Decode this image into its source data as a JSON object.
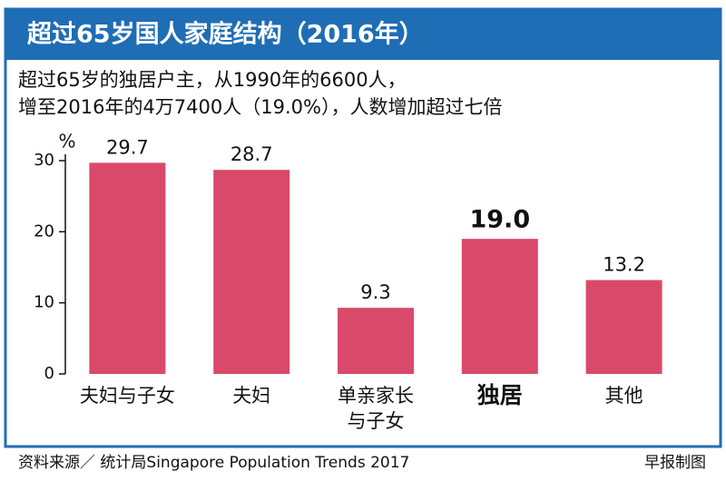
{
  "chart_data": {
    "type": "bar",
    "title": "超过65岁国人家庭结构（2016年）",
    "subtitle": [
      "超过65岁的独居户主，从1990年的6600人，",
      "增至2016年的4万7400人（19.0%），人数增加超过七倍"
    ],
    "y_label": "%",
    "categories": [
      "夫妇与子女",
      "夫妇",
      "单亲家长\n与子女",
      "独居",
      "其他"
    ],
    "values": [
      29.7,
      28.7,
      9.3,
      19,
      13.2
    ],
    "value_labels": [
      "29.7",
      "28.7",
      "9.3",
      "19.0",
      "13.2"
    ],
    "highlight_index": 3,
    "color": "#d94a6a",
    "ylim": [
      0,
      30
    ],
    "yticks": [
      0,
      10,
      20,
      30
    ],
    "source": "资料来源／ 统计局Singapore Population Trends 2017",
    "credit": "早报制图"
  }
}
